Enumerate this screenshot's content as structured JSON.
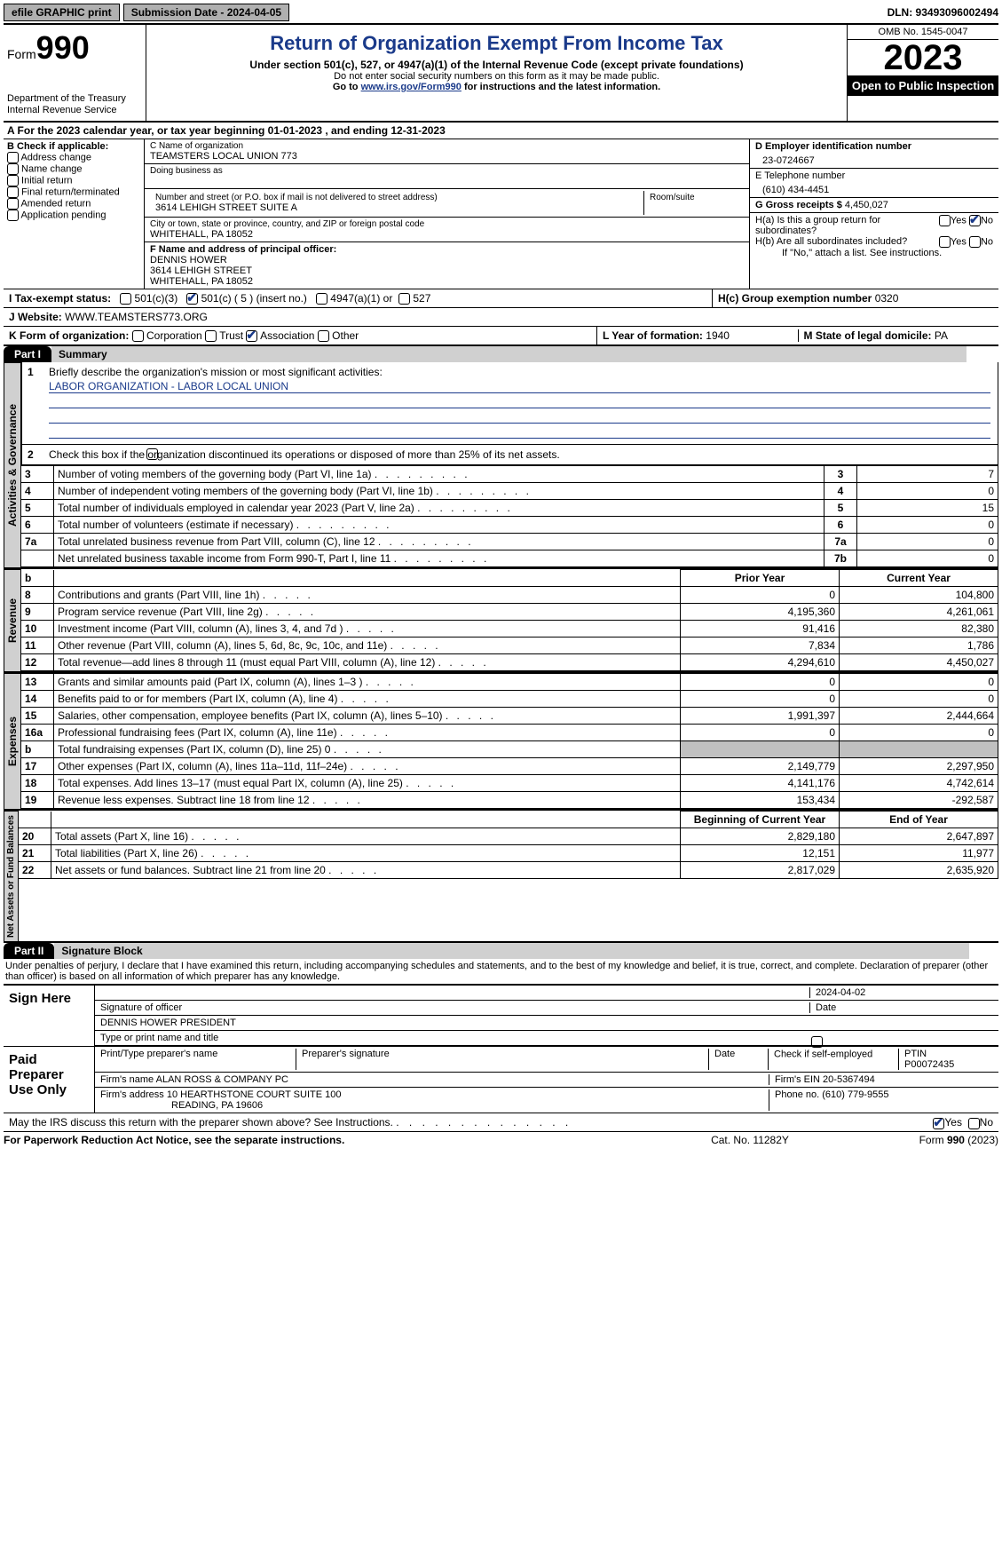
{
  "top": {
    "efile": "efile GRAPHIC print",
    "submission": "Submission Date - 2024-04-05",
    "dln": "DLN: 93493096002494"
  },
  "header": {
    "form_prefix": "Form",
    "form_no": "990",
    "dept": "Department of the Treasury Internal Revenue Service",
    "title": "Return of Organization Exempt From Income Tax",
    "sub": "Under section 501(c), 527, or 4947(a)(1) of the Internal Revenue Code (except private foundations)",
    "note1": "Do not enter social security numbers on this form as it may be made public.",
    "note2_pre": "Go to ",
    "note2_link": "www.irs.gov/Form990",
    "note2_post": " for instructions and the latest information.",
    "omb": "OMB No. 1545-0047",
    "year": "2023",
    "open": "Open to Public Inspection"
  },
  "lineA": "A For the 2023 calendar year, or tax year beginning 01-01-2023   , and ending 12-31-2023",
  "boxB": {
    "title": "B Check if applicable:",
    "opts": [
      "Address change",
      "Name change",
      "Initial return",
      "Final return/terminated",
      "Amended return",
      "Application pending"
    ]
  },
  "boxC": {
    "name_lbl": "C Name of organization",
    "name": "TEAMSTERS LOCAL UNION 773",
    "dba_lbl": "Doing business as",
    "addr_lbl": "Number and street (or P.O. box if mail is not delivered to street address)",
    "room_lbl": "Room/suite",
    "addr": "3614 LEHIGH STREET SUITE A",
    "city_lbl": "City or town, state or province, country, and ZIP or foreign postal code",
    "city": "WHITEHALL, PA  18052"
  },
  "boxD": {
    "lbl": "D Employer identification number",
    "val": "23-0724667"
  },
  "boxE": {
    "lbl": "E Telephone number",
    "val": "(610) 434-4451"
  },
  "boxG": {
    "lbl": "G Gross receipts $",
    "val": "4,450,027"
  },
  "boxF": {
    "lbl": "F  Name and address of principal officer:",
    "l1": "DENNIS HOWER",
    "l2": "3614 LEHIGH STREET",
    "l3": "WHITEHALL, PA  18052"
  },
  "boxH": {
    "a": "H(a)  Is this a group return for subordinates?",
    "b": "H(b)  Are all subordinates included?",
    "b_note": "If \"No,\" attach a list. See instructions.",
    "c_lbl": "H(c)  Group exemption number ",
    "c_val": "0320"
  },
  "rowI": {
    "lbl": "I   Tax-exempt status:",
    "o1": "501(c)(3)",
    "o2": "501(c) ( 5 ) (insert no.)",
    "o3": "4947(a)(1) or",
    "o4": "527"
  },
  "rowJ": {
    "lbl": "J   Website: ",
    "val": "WWW.TEAMSTERS773.ORG"
  },
  "rowK": {
    "lbl": "K Form of organization:",
    "o1": "Corporation",
    "o2": "Trust",
    "o3": "Association",
    "o4": "Other"
  },
  "rowL": {
    "lbl": "L Year of formation:",
    "val": "1940"
  },
  "rowM": {
    "lbl": "M State of legal domicile:",
    "val": "PA"
  },
  "part1": {
    "hdr": "Part I",
    "title": "Summary"
  },
  "summary": {
    "q1_lbl": "Briefly describe the organization's mission or most significant activities:",
    "q1_val": "LABOR ORGANIZATION - LABOR LOCAL UNION",
    "q2": "Check this box      if the organization discontinued its operations or disposed of more than 25% of its net assets.",
    "rows_gov": [
      {
        "n": "3",
        "d": "Number of voting members of the governing body (Part VI, line 1a)",
        "b": "3",
        "v": "7"
      },
      {
        "n": "4",
        "d": "Number of independent voting members of the governing body (Part VI, line 1b)",
        "b": "4",
        "v": "0"
      },
      {
        "n": "5",
        "d": "Total number of individuals employed in calendar year 2023 (Part V, line 2a)",
        "b": "5",
        "v": "15"
      },
      {
        "n": "6",
        "d": "Total number of volunteers (estimate if necessary)",
        "b": "6",
        "v": "0"
      },
      {
        "n": "7a",
        "d": "Total unrelated business revenue from Part VIII, column (C), line 12",
        "b": "7a",
        "v": "0"
      },
      {
        "n": "",
        "d": "Net unrelated business taxable income from Form 990-T, Part I, line 11",
        "b": "7b",
        "v": "0"
      }
    ],
    "col_prior": "Prior Year",
    "col_curr": "Current Year",
    "rows_rev": [
      {
        "n": "8",
        "d": "Contributions and grants (Part VIII, line 1h)",
        "p": "0",
        "c": "104,800"
      },
      {
        "n": "9",
        "d": "Program service revenue (Part VIII, line 2g)",
        "p": "4,195,360",
        "c": "4,261,061"
      },
      {
        "n": "10",
        "d": "Investment income (Part VIII, column (A), lines 3, 4, and 7d )",
        "p": "91,416",
        "c": "82,380"
      },
      {
        "n": "11",
        "d": "Other revenue (Part VIII, column (A), lines 5, 6d, 8c, 9c, 10c, and 11e)",
        "p": "7,834",
        "c": "1,786"
      },
      {
        "n": "12",
        "d": "Total revenue—add lines 8 through 11 (must equal Part VIII, column (A), line 12)",
        "p": "4,294,610",
        "c": "4,450,027"
      }
    ],
    "rows_exp": [
      {
        "n": "13",
        "d": "Grants and similar amounts paid (Part IX, column (A), lines 1–3 )",
        "p": "0",
        "c": "0"
      },
      {
        "n": "14",
        "d": "Benefits paid to or for members (Part IX, column (A), line 4)",
        "p": "0",
        "c": "0"
      },
      {
        "n": "15",
        "d": "Salaries, other compensation, employee benefits (Part IX, column (A), lines 5–10)",
        "p": "1,991,397",
        "c": "2,444,664"
      },
      {
        "n": "16a",
        "d": "Professional fundraising fees (Part IX, column (A), line 11e)",
        "p": "0",
        "c": "0"
      },
      {
        "n": "b",
        "d": "Total fundraising expenses (Part IX, column (D), line 25) 0",
        "p": "shaded",
        "c": "shaded"
      },
      {
        "n": "17",
        "d": "Other expenses (Part IX, column (A), lines 11a–11d, 11f–24e)",
        "p": "2,149,779",
        "c": "2,297,950"
      },
      {
        "n": "18",
        "d": "Total expenses. Add lines 13–17 (must equal Part IX, column (A), line 25)",
        "p": "4,141,176",
        "c": "4,742,614"
      },
      {
        "n": "19",
        "d": "Revenue less expenses. Subtract line 18 from line 12",
        "p": "153,434",
        "c": "-292,587"
      }
    ],
    "col_beg": "Beginning of Current Year",
    "col_end": "End of Year",
    "rows_net": [
      {
        "n": "20",
        "d": "Total assets (Part X, line 16)",
        "p": "2,829,180",
        "c": "2,647,897"
      },
      {
        "n": "21",
        "d": "Total liabilities (Part X, line 26)",
        "p": "12,151",
        "c": "11,977"
      },
      {
        "n": "22",
        "d": "Net assets or fund balances. Subtract line 21 from line 20",
        "p": "2,817,029",
        "c": "2,635,920"
      }
    ]
  },
  "vlabels": {
    "gov": "Activities & Governance",
    "rev": "Revenue",
    "exp": "Expenses",
    "net": "Net Assets or Fund Balances"
  },
  "part2": {
    "hdr": "Part II",
    "title": "Signature Block"
  },
  "sig": {
    "jurat": "Under penalties of perjury, I declare that I have examined this return, including accompanying schedules and statements, and to the best of my knowledge and belief, it is true, correct, and complete. Declaration of preparer (other than officer) is based on all information of which preparer has any knowledge.",
    "sign_here": "Sign Here",
    "date": "2024-04-02",
    "sig_lbl": "Signature of officer",
    "date_lbl": "Date",
    "officer": "DENNIS HOWER  PRESIDENT",
    "type_lbl": "Type or print name and title",
    "paid": "Paid Preparer Use Only",
    "prep_name_lbl": "Print/Type preparer's name",
    "prep_sig_lbl": "Preparer's signature",
    "check_lbl": "Check       if self-employed",
    "ptin_lbl": "PTIN",
    "ptin": "P00072435",
    "firm_lbl": "Firm's name   ",
    "firm": "ALAN ROSS & COMPANY PC",
    "ein_lbl": "Firm's EIN ",
    "ein": "20-5367494",
    "addr_lbl": "Firm's address ",
    "addr1": "10 HEARTHSTONE COURT SUITE 100",
    "addr2": "READING, PA  19606",
    "phone_lbl": "Phone no. ",
    "phone": "(610) 779-9555",
    "discuss": "May the IRS discuss this return with the preparer shown above? See Instructions."
  },
  "footer": {
    "pra": "For Paperwork Reduction Act Notice, see the separate instructions.",
    "cat": "Cat. No. 11282Y",
    "form": "Form 990 (2023)"
  },
  "yn": {
    "yes": "Yes",
    "no": "No"
  }
}
